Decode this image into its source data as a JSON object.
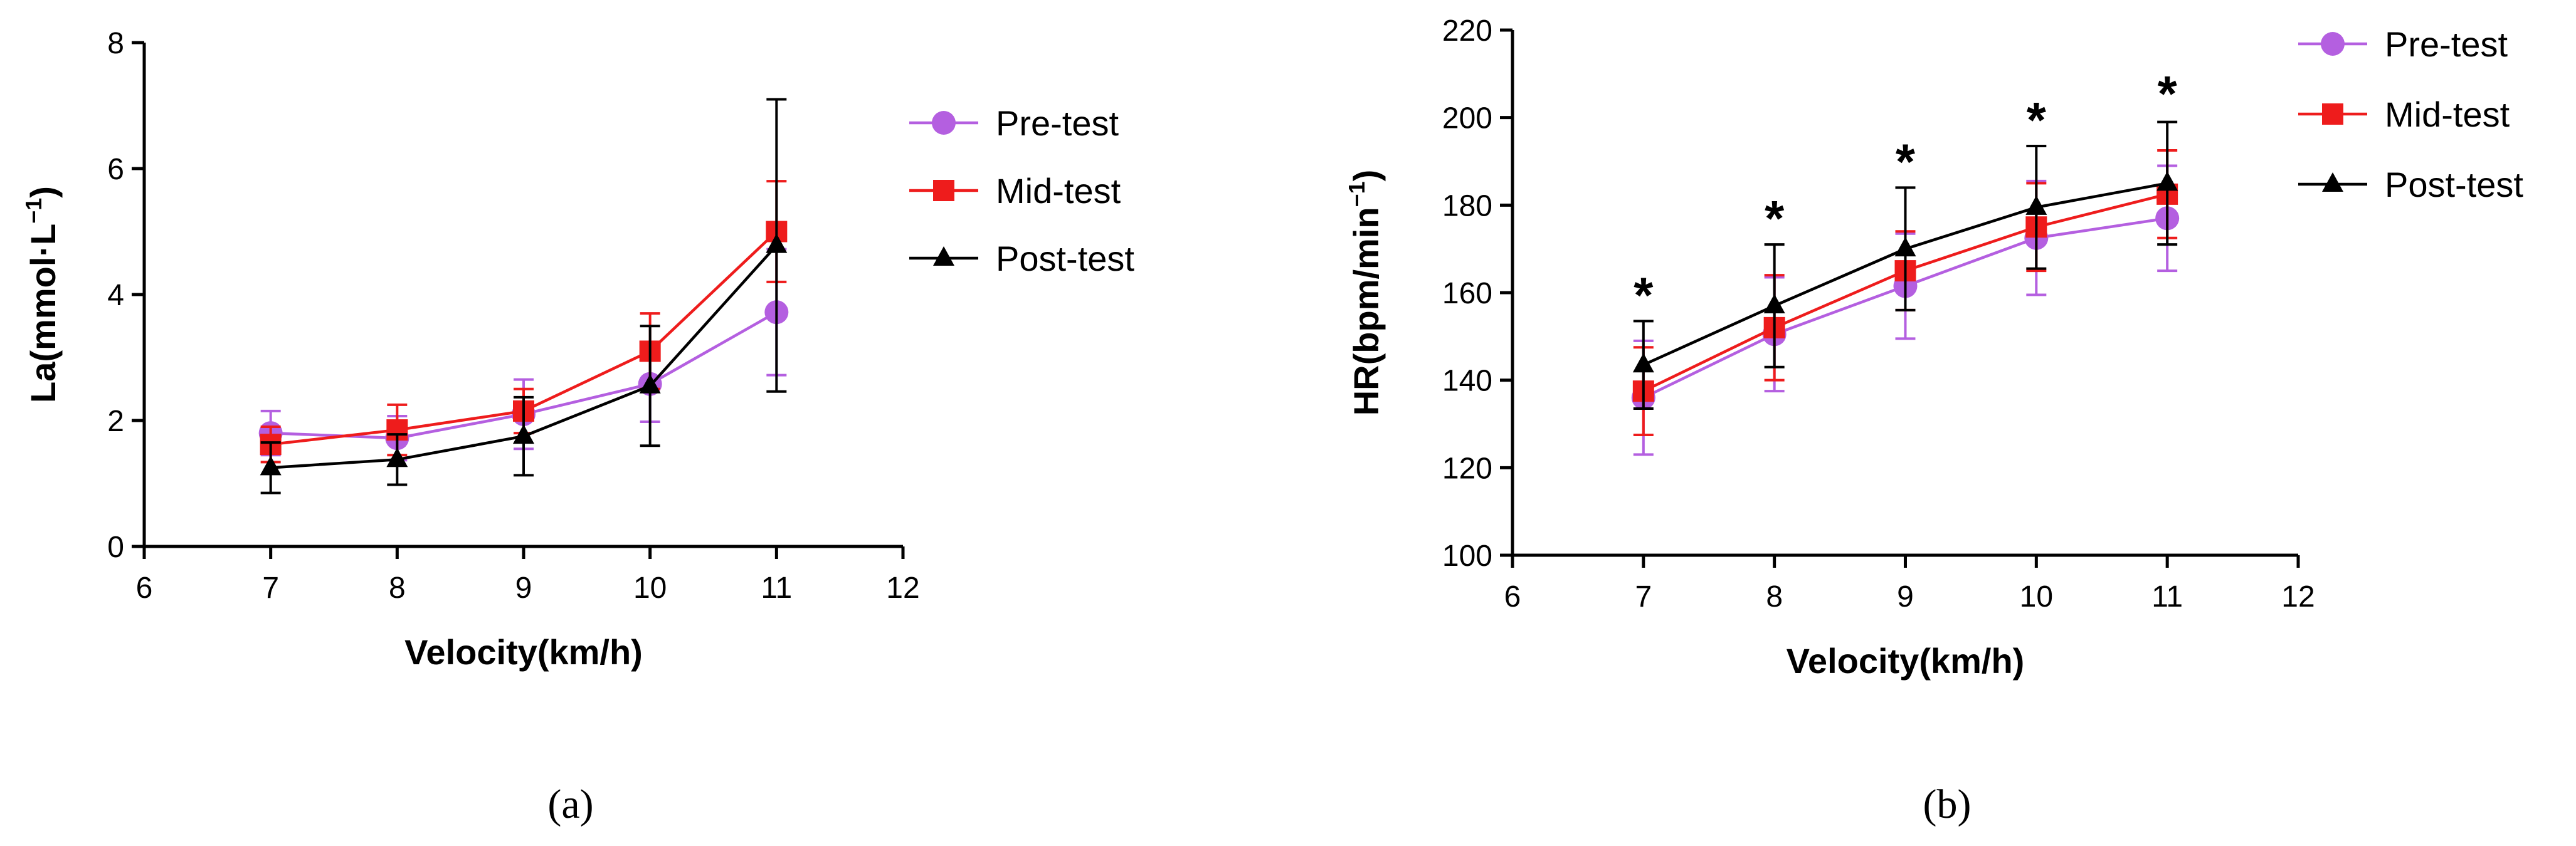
{
  "chart_data": [
    {
      "id": "a",
      "type": "line",
      "caption": "(a)",
      "xlabel": "Velocity(km/h)",
      "ylabel": "La(mmol·L",
      "ylabel_sup": "−1",
      "ylabel_end": ")",
      "xlim": [
        6,
        12
      ],
      "ylim": [
        0,
        8
      ],
      "xticks": [
        6,
        7,
        8,
        9,
        10,
        11,
        12
      ],
      "yticks": [
        0,
        2,
        4,
        6,
        8
      ],
      "x": [
        7,
        8,
        9,
        10,
        11
      ],
      "series": [
        {
          "name": "Pre-test",
          "color": "#b45fe0",
          "marker": "circle",
          "values": [
            1.8,
            1.72,
            2.1,
            2.58,
            3.72
          ],
          "errors": [
            0.35,
            0.35,
            0.55,
            0.6,
            1.0
          ]
        },
        {
          "name": "Mid-test",
          "color": "#ee1c1c",
          "marker": "square",
          "values": [
            1.62,
            1.85,
            2.15,
            3.1,
            5.0
          ],
          "errors": [
            0.28,
            0.4,
            0.35,
            0.6,
            0.8
          ]
        },
        {
          "name": "Post-test",
          "color": "#000000",
          "marker": "triangle",
          "values": [
            1.25,
            1.38,
            1.75,
            2.55,
            4.78
          ],
          "errors": [
            0.4,
            0.4,
            0.62,
            0.95,
            2.32
          ]
        }
      ],
      "annotations": []
    },
    {
      "id": "b",
      "type": "line",
      "caption": "(b)",
      "xlabel": "Velocity(km/h)",
      "ylabel": "HR(bpm/min",
      "ylabel_sup": "−1",
      "ylabel_end": ")",
      "xlim": [
        6,
        12
      ],
      "ylim": [
        100,
        220
      ],
      "xticks": [
        6,
        7,
        8,
        9,
        10,
        11,
        12
      ],
      "yticks": [
        100,
        120,
        140,
        160,
        180,
        200,
        220
      ],
      "x": [
        7,
        8,
        9,
        10,
        11
      ],
      "series": [
        {
          "name": "Pre-test",
          "color": "#b45fe0",
          "marker": "circle",
          "values": [
            136,
            150.5,
            161.5,
            172.5,
            177
          ],
          "errors": [
            13,
            13,
            12,
            13,
            12
          ]
        },
        {
          "name": "Mid-test",
          "color": "#ee1c1c",
          "marker": "square",
          "values": [
            137.5,
            152,
            165,
            175,
            182.5
          ],
          "errors": [
            10,
            12,
            9,
            10,
            10
          ]
        },
        {
          "name": "Post-test",
          "color": "#000000",
          "marker": "triangle",
          "values": [
            143.5,
            157,
            170,
            179.5,
            185
          ],
          "errors": [
            10,
            14,
            14,
            14,
            14
          ]
        }
      ],
      "annotations": [
        {
          "x": 7,
          "y": 153.5,
          "text": "*"
        },
        {
          "x": 8,
          "y": 171,
          "text": "*"
        },
        {
          "x": 9,
          "y": 184,
          "text": "*"
        },
        {
          "x": 10,
          "y": 193.5,
          "text": "*"
        },
        {
          "x": 11,
          "y": 199.5,
          "text": "*"
        }
      ]
    }
  ]
}
